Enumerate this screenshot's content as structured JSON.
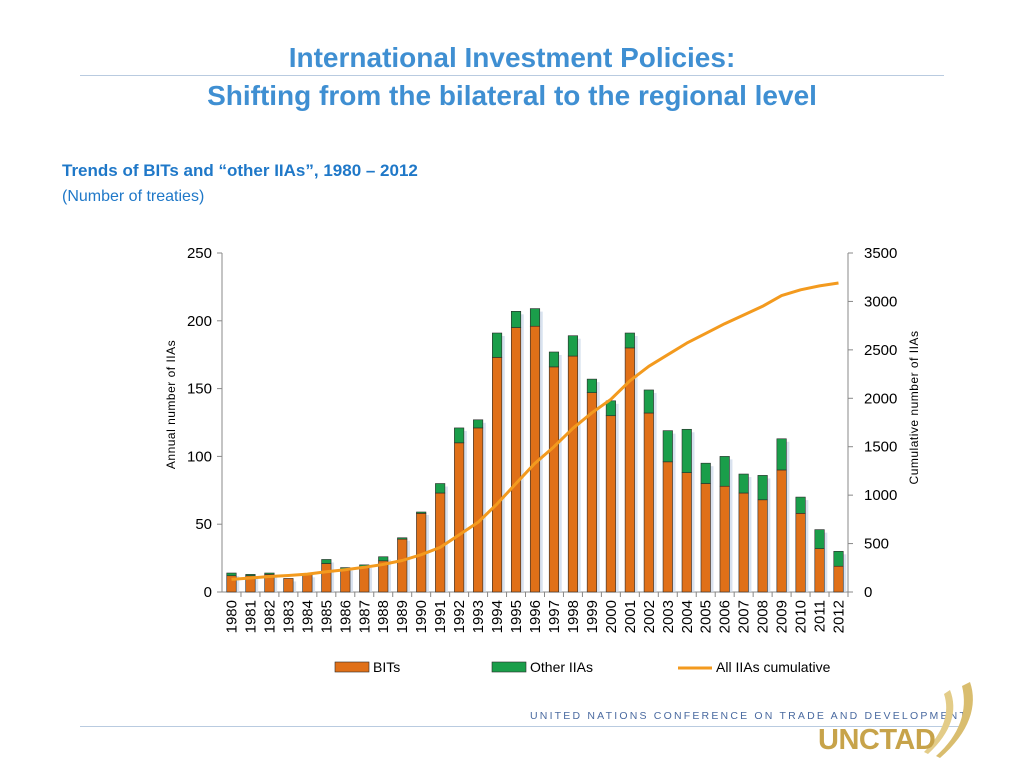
{
  "slide": {
    "title_line_1": "International Investment Policies:",
    "title_line_2": "Shifting from the bilateral to the regional level"
  },
  "footer": {
    "organization": "UNITED NATIONS CONFERENCE ON TRADE AND DEVELOPMENT",
    "logo_text": "UNCTAD"
  },
  "chart_data": {
    "type": "bar",
    "title": "Trends of BITs and “other IIAs”, 1980 – 2012",
    "subtitle": "(Number of treaties)",
    "ylabel": "Annual number of IIAs",
    "y2label": "Cumulative  number of IIAs",
    "categories": [
      "1980",
      "1981",
      "1982",
      "1983",
      "1984",
      "1985",
      "1986",
      "1987",
      "1988",
      "1989",
      "1990",
      "1991",
      "1992",
      "1993",
      "1994",
      "1995",
      "1996",
      "1997",
      "1998",
      "1999",
      "2000",
      "2001",
      "2002",
      "2003",
      "2004",
      "2005",
      "2006",
      "2007",
      "2008",
      "2009",
      "2010",
      "2011",
      "2012"
    ],
    "series": [
      {
        "name": "BITs",
        "type": "bar",
        "stack": "annual",
        "axis": "left",
        "color": "#e07018",
        "values": [
          12,
          12,
          13,
          10,
          13,
          21,
          16,
          18,
          23,
          39,
          58,
          73,
          110,
          121,
          173,
          195,
          196,
          166,
          174,
          147,
          130,
          180,
          132,
          96,
          88,
          80,
          78,
          73,
          68,
          90,
          58,
          32,
          19
        ]
      },
      {
        "name": "Other IIAs",
        "type": "bar",
        "stack": "annual",
        "axis": "left",
        "color": "#1a9e4a",
        "values": [
          2,
          1,
          1,
          0,
          0,
          3,
          2,
          2,
          3,
          1,
          1,
          7,
          11,
          6,
          18,
          12,
          13,
          11,
          15,
          10,
          11,
          11,
          17,
          23,
          32,
          15,
          22,
          14,
          18,
          23,
          12,
          14,
          11
        ]
      },
      {
        "name": "All IIAs cumulative",
        "type": "line",
        "axis": "right",
        "color": "#f39a1e",
        "values": [
          130,
          145,
          160,
          170,
          185,
          210,
          230,
          255,
          285,
          325,
          385,
          460,
          590,
          720,
          910,
          1120,
          1330,
          1500,
          1690,
          1850,
          1990,
          2180,
          2330,
          2450,
          2570,
          2670,
          2770,
          2860,
          2950,
          3060,
          3120,
          3160,
          3190
        ]
      }
    ],
    "ylim": [
      0,
      250
    ],
    "y2lim": [
      0,
      3500
    ],
    "yticks": [
      0,
      50,
      100,
      150,
      200,
      250
    ],
    "y2ticks": [
      0,
      500,
      1000,
      1500,
      2000,
      2500,
      3000,
      3500
    ],
    "grid": false,
    "legend_position": "bottom"
  }
}
